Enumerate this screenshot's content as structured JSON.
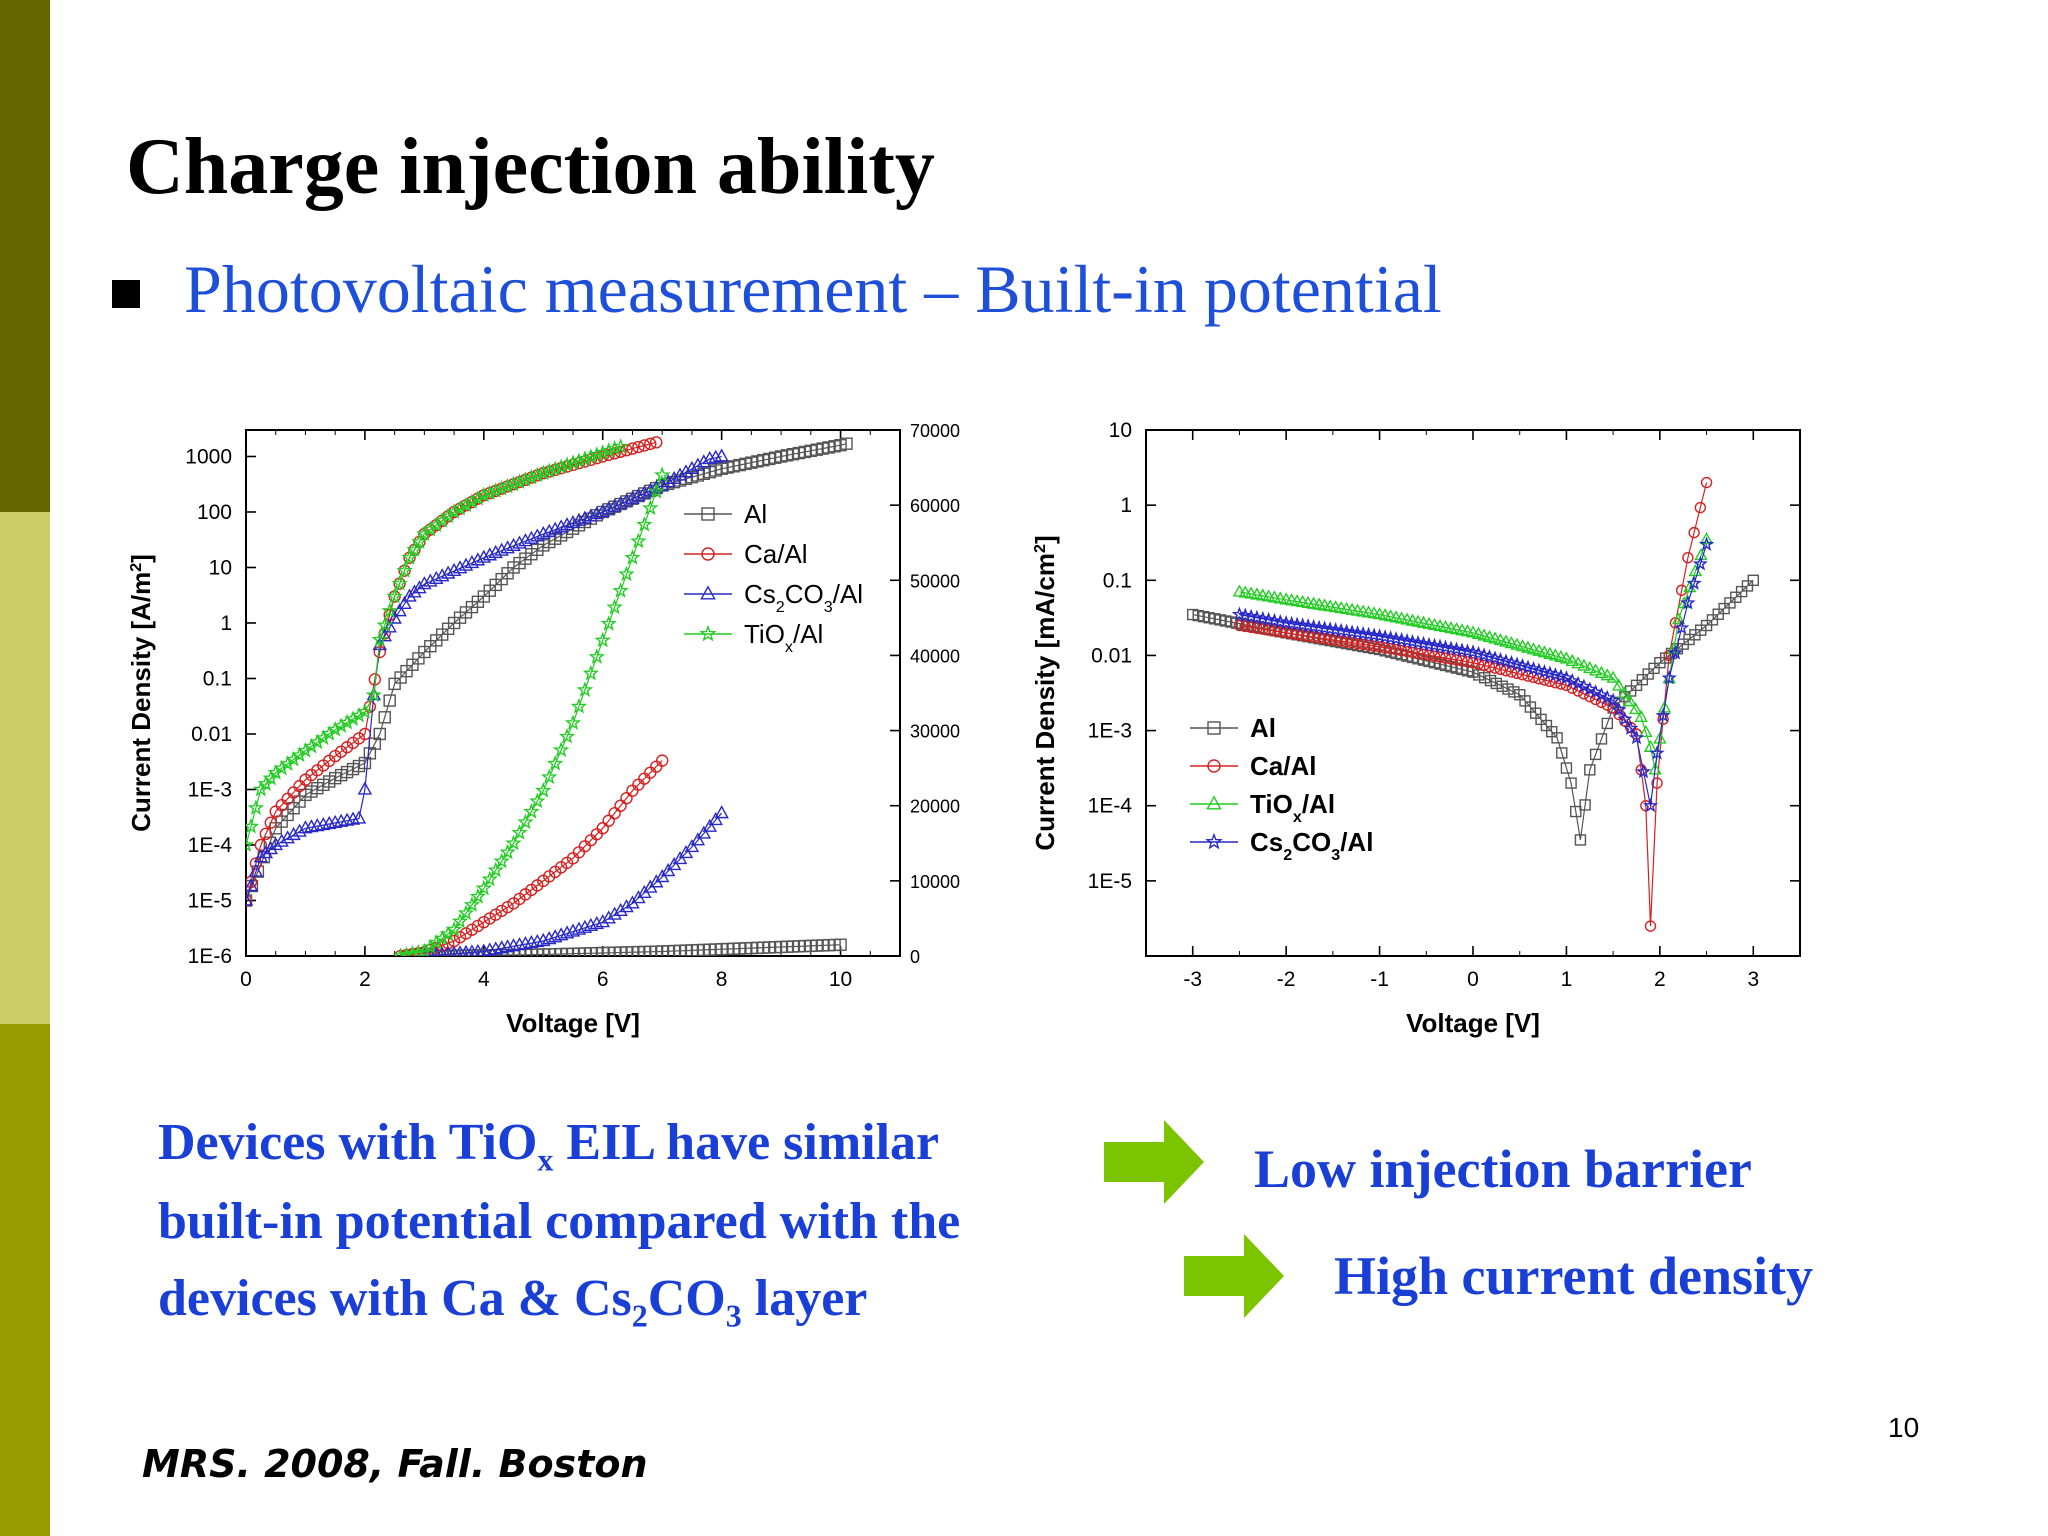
{
  "title": "Charge injection ability",
  "bullet": "Photovoltaic measurement – Built-in potential",
  "description": {
    "line1_pre": "Devices with TiO",
    "line1_sub": "x",
    "line1_post": " EIL have similar",
    "line2": "built-in potential compared with the",
    "line3_pre": "devices with Ca & Cs",
    "line3_sub1": "2",
    "line3_mid": "CO",
    "line3_sub2": "3",
    "line3_post": " layer"
  },
  "result1": "Low injection barrier",
  "result2": "High current density",
  "citation": "MRS. 2008, Fall. Boston",
  "page_number": "10",
  "colors": {
    "text_blue": "#1a3fd6",
    "arrow_green": "#7dc400",
    "Al": "#555555",
    "Ca/Al": "#d62020",
    "Cs2CO3/Al": "#2828c8",
    "TiOx/Al": "#22cc22"
  },
  "chart_data": [
    {
      "type": "scatter",
      "xlabel": "Voltage [V]",
      "ylabel": "Current Density [A/m2]",
      "x_ticks": [
        "0",
        "2",
        "4",
        "6",
        "8",
        "10"
      ],
      "xlim": [
        0,
        11
      ],
      "y_scale": "log",
      "ylim": [
        1e-06,
        3000
      ],
      "y_ticks": [
        "1E-6",
        "1E-5",
        "1E-4",
        "1E-3",
        "0.01",
        "0.1",
        "1",
        "10",
        "100",
        "1000"
      ],
      "y2_ticks": [
        "0",
        "10000",
        "20000",
        "30000",
        "40000",
        "50000",
        "60000",
        "70000"
      ],
      "y2lim": [
        0,
        70000
      ],
      "legend_position": "center-right",
      "series": [
        {
          "name": "Al",
          "marker": "square",
          "axis": "left",
          "points": [
            [
              0,
              1e-05
            ],
            [
              0.5,
              0.0002
            ],
            [
              1,
              0.0008
            ],
            [
              1.5,
              0.0016
            ],
            [
              2,
              0.003
            ],
            [
              2.25,
              0.01
            ],
            [
              2.5,
              0.08
            ],
            [
              3,
              0.3
            ],
            [
              3.5,
              1
            ],
            [
              4,
              3
            ],
            [
              4.5,
              10
            ],
            [
              5,
              25
            ],
            [
              5.5,
              50
            ],
            [
              6,
              100
            ],
            [
              7,
              300
            ],
            [
              8,
              600
            ],
            [
              9,
              1000
            ],
            [
              10,
              1600
            ],
            [
              10.1,
              1700
            ]
          ]
        },
        {
          "name": "Ca/Al",
          "marker": "circle",
          "axis": "left",
          "points": [
            [
              0,
              1e-05
            ],
            [
              0.25,
              0.0001
            ],
            [
              0.5,
              0.0004
            ],
            [
              1,
              0.0015
            ],
            [
              1.5,
              0.004
            ],
            [
              2,
              0.01
            ],
            [
              2.25,
              0.3
            ],
            [
              2.5,
              3
            ],
            [
              2.75,
              15
            ],
            [
              3,
              40
            ],
            [
              3.5,
              100
            ],
            [
              4,
              200
            ],
            [
              5,
              500
            ],
            [
              6,
              1000
            ],
            [
              6.9,
              1800
            ]
          ]
        },
        {
          "name": "Cs2CO3/Al",
          "marker": "triangle",
          "axis": "left",
          "points": [
            [
              0,
              1e-05
            ],
            [
              0.25,
              6e-05
            ],
            [
              0.5,
              0.0001
            ],
            [
              1,
              0.0002
            ],
            [
              1.5,
              0.00025
            ],
            [
              1.9,
              0.0003
            ],
            [
              2,
              0.001
            ],
            [
              2.15,
              0.05
            ],
            [
              2.25,
              0.4
            ],
            [
              2.5,
              1.2
            ],
            [
              2.75,
              3
            ],
            [
              3,
              5
            ],
            [
              4,
              15
            ],
            [
              5,
              40
            ],
            [
              6,
              100
            ],
            [
              7,
              300
            ],
            [
              7.8,
              900
            ],
            [
              8,
              1000
            ]
          ]
        },
        {
          "name": "TiOx/Al",
          "marker": "star",
          "axis": "left",
          "points": [
            [
              0,
              0.0001
            ],
            [
              0.25,
              0.001
            ],
            [
              0.5,
              0.002
            ],
            [
              1,
              0.005
            ],
            [
              1.5,
              0.012
            ],
            [
              2,
              0.025
            ],
            [
              2.15,
              0.05
            ],
            [
              2.25,
              0.5
            ],
            [
              2.5,
              3
            ],
            [
              2.75,
              15
            ],
            [
              3,
              40
            ],
            [
              3.5,
              100
            ],
            [
              4,
              200
            ],
            [
              5,
              500
            ],
            [
              6.3,
              1500
            ]
          ]
        },
        {
          "name": "Al",
          "marker": "square",
          "axis": "right",
          "points": [
            [
              3,
              0
            ],
            [
              4,
              80
            ],
            [
              5,
              200
            ],
            [
              6,
              400
            ],
            [
              7,
              600
            ],
            [
              8,
              900
            ],
            [
              9,
              1200
            ],
            [
              10,
              1500
            ]
          ]
        },
        {
          "name": "Ca/Al",
          "marker": "circle",
          "axis": "right",
          "points": [
            [
              2.6,
              0
            ],
            [
              3,
              500
            ],
            [
              3.5,
              2000
            ],
            [
              4,
              4500
            ],
            [
              4.5,
              7000
            ],
            [
              5,
              10000
            ],
            [
              5.5,
              13000
            ],
            [
              6,
              17000
            ],
            [
              6.5,
              22000
            ],
            [
              7,
              26000
            ]
          ]
        },
        {
          "name": "Cs2CO3/Al",
          "marker": "triangle",
          "axis": "right",
          "points": [
            [
              3,
              0
            ],
            [
              4,
              600
            ],
            [
              5,
              2000
            ],
            [
              6,
              4500
            ],
            [
              6.5,
              7000
            ],
            [
              7,
              10500
            ],
            [
              7.5,
              14500
            ],
            [
              8,
              19000
            ]
          ]
        },
        {
          "name": "TiOx/Al",
          "marker": "star",
          "axis": "right",
          "points": [
            [
              2.6,
              0
            ],
            [
              3,
              600
            ],
            [
              3.5,
              3500
            ],
            [
              4,
              9000
            ],
            [
              4.5,
              15000
            ],
            [
              5,
              22000
            ],
            [
              5.5,
              31000
            ],
            [
              6,
              42000
            ],
            [
              6.5,
              53000
            ],
            [
              7,
              64000
            ]
          ]
        }
      ]
    },
    {
      "type": "scatter",
      "xlabel": "Voltage [V]",
      "ylabel": "Current Density [mA/cm2]",
      "x_ticks": [
        "-3",
        "-2",
        "-1",
        "0",
        "1",
        "2",
        "3"
      ],
      "xlim": [
        -3.5,
        3.5
      ],
      "y_scale": "log",
      "ylim": [
        1e-06,
        10
      ],
      "y_ticks": [
        "1E-5",
        "1E-4",
        "1E-3",
        "0.01",
        "0.1",
        "1",
        "10"
      ],
      "legend_position": "center-left",
      "series": [
        {
          "name": "Al",
          "marker": "square",
          "points": [
            [
              -3,
              0.035
            ],
            [
              -2,
              0.02
            ],
            [
              -1,
              0.012
            ],
            [
              0,
              0.006
            ],
            [
              0.5,
              0.003
            ],
            [
              0.9,
              0.0008
            ],
            [
              1.05,
              0.0002
            ],
            [
              1.15,
              3.5e-05
            ],
            [
              1.25,
              0.0003
            ],
            [
              1.5,
              0.002
            ],
            [
              2,
              0.008
            ],
            [
              2.5,
              0.025
            ],
            [
              3,
              0.1
            ]
          ]
        },
        {
          "name": "Ca/Al",
          "marker": "circle",
          "points": [
            [
              -2.5,
              0.025
            ],
            [
              -2,
              0.02
            ],
            [
              -1,
              0.013
            ],
            [
              0,
              0.008
            ],
            [
              1,
              0.004
            ],
            [
              1.5,
              0.002
            ],
            [
              1.75,
              0.0009
            ],
            [
              1.85,
              0.0001
            ],
            [
              1.9,
              2.5e-06
            ],
            [
              1.97,
              0.0002
            ],
            [
              2.1,
              0.01
            ],
            [
              2.3,
              0.2
            ],
            [
              2.5,
              2
            ]
          ]
        },
        {
          "name": "TiOx/Al",
          "marker": "triangle",
          "points": [
            [
              -2.5,
              0.07
            ],
            [
              -2,
              0.055
            ],
            [
              -1,
              0.035
            ],
            [
              0,
              0.02
            ],
            [
              1,
              0.009
            ],
            [
              1.5,
              0.005
            ],
            [
              1.8,
              0.0015
            ],
            [
              1.9,
              0.0006
            ],
            [
              1.95,
              0.0003
            ],
            [
              2.05,
              0.002
            ],
            [
              2.2,
              0.03
            ],
            [
              2.5,
              0.35
            ]
          ]
        },
        {
          "name": "Cs2CO3/Al",
          "marker": "star",
          "points": [
            [
              -2.5,
              0.035
            ],
            [
              -2,
              0.027
            ],
            [
              -1,
              0.018
            ],
            [
              0,
              0.011
            ],
            [
              1,
              0.005
            ],
            [
              1.5,
              0.0025
            ],
            [
              1.75,
              0.0008
            ],
            [
              1.9,
              0.0001
            ],
            [
              1.97,
              0.0005
            ],
            [
              2.1,
              0.005
            ],
            [
              2.3,
              0.05
            ],
            [
              2.5,
              0.3
            ]
          ]
        }
      ]
    }
  ]
}
